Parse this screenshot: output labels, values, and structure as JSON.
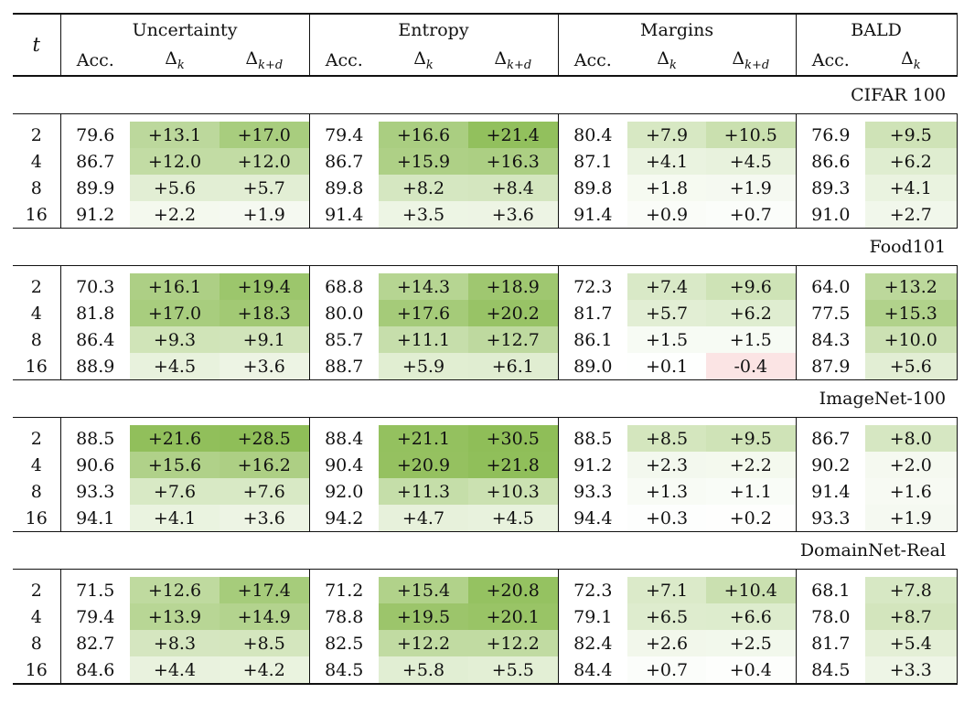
{
  "columns": {
    "t": "t",
    "groups": [
      "Uncertainty",
      "Entropy",
      "Margins",
      "BALD"
    ],
    "acc": "Acc.",
    "delta_k": "Δk",
    "delta_kd": "Δk+d"
  },
  "colors": {
    "pos_max": "#8fbe58",
    "neg": "#fbe4e4"
  },
  "sections": [
    {
      "name": "CIFAR 100",
      "rows": [
        {
          "t": "2",
          "u": [
            "79.6",
            "+13.1",
            "+17.0"
          ],
          "e": [
            "79.4",
            "+16.6",
            "+21.4"
          ],
          "m": [
            "80.4",
            "+7.9",
            "+10.5"
          ],
          "b": [
            "76.9",
            "+9.5"
          ]
        },
        {
          "t": "4",
          "u": [
            "86.7",
            "+12.0",
            "+12.0"
          ],
          "e": [
            "86.7",
            "+15.9",
            "+16.3"
          ],
          "m": [
            "87.1",
            "+4.1",
            "+4.5"
          ],
          "b": [
            "86.6",
            "+6.2"
          ]
        },
        {
          "t": "8",
          "u": [
            "89.9",
            "+5.6",
            "+5.7"
          ],
          "e": [
            "89.8",
            "+8.2",
            "+8.4"
          ],
          "m": [
            "89.8",
            "+1.8",
            "+1.9"
          ],
          "b": [
            "89.3",
            "+4.1"
          ]
        },
        {
          "t": "16",
          "u": [
            "91.2",
            "+2.2",
            "+1.9"
          ],
          "e": [
            "91.4",
            "+3.5",
            "+3.6"
          ],
          "m": [
            "91.4",
            "+0.9",
            "+0.7"
          ],
          "b": [
            "91.0",
            "+2.7"
          ]
        }
      ]
    },
    {
      "name": "Food101",
      "rows": [
        {
          "t": "2",
          "u": [
            "70.3",
            "+16.1",
            "+19.4"
          ],
          "e": [
            "68.8",
            "+14.3",
            "+18.9"
          ],
          "m": [
            "72.3",
            "+7.4",
            "+9.6"
          ],
          "b": [
            "64.0",
            "+13.2"
          ]
        },
        {
          "t": "4",
          "u": [
            "81.8",
            "+17.0",
            "+18.3"
          ],
          "e": [
            "80.0",
            "+17.6",
            "+20.2"
          ],
          "m": [
            "81.7",
            "+5.7",
            "+6.2"
          ],
          "b": [
            "77.5",
            "+15.3"
          ]
        },
        {
          "t": "8",
          "u": [
            "86.4",
            "+9.3",
            "+9.1"
          ],
          "e": [
            "85.7",
            "+11.1",
            "+12.7"
          ],
          "m": [
            "86.1",
            "+1.5",
            "+1.5"
          ],
          "b": [
            "84.3",
            "+10.0"
          ]
        },
        {
          "t": "16",
          "u": [
            "88.9",
            "+4.5",
            "+3.6"
          ],
          "e": [
            "88.7",
            "+5.9",
            "+6.1"
          ],
          "m": [
            "89.0",
            "+0.1",
            "-0.4"
          ],
          "b": [
            "87.9",
            "+5.6"
          ]
        }
      ]
    },
    {
      "name": "ImageNet-100",
      "rows": [
        {
          "t": "2",
          "u": [
            "88.5",
            "+21.6",
            "+28.5"
          ],
          "e": [
            "88.4",
            "+21.1",
            "+30.5"
          ],
          "m": [
            "88.5",
            "+8.5",
            "+9.5"
          ],
          "b": [
            "86.7",
            "+8.0"
          ]
        },
        {
          "t": "4",
          "u": [
            "90.6",
            "+15.6",
            "+16.2"
          ],
          "e": [
            "90.4",
            "+20.9",
            "+21.8"
          ],
          "m": [
            "91.2",
            "+2.3",
            "+2.2"
          ],
          "b": [
            "90.2",
            "+2.0"
          ]
        },
        {
          "t": "8",
          "u": [
            "93.3",
            "+7.6",
            "+7.6"
          ],
          "e": [
            "92.0",
            "+11.3",
            "+10.3"
          ],
          "m": [
            "93.3",
            "+1.3",
            "+1.1"
          ],
          "b": [
            "91.4",
            "+1.6"
          ]
        },
        {
          "t": "16",
          "u": [
            "94.1",
            "+4.1",
            "+3.6"
          ],
          "e": [
            "94.2",
            "+4.7",
            "+4.5"
          ],
          "m": [
            "94.4",
            "+0.3",
            "+0.2"
          ],
          "b": [
            "93.3",
            "+1.9"
          ]
        }
      ]
    },
    {
      "name": "DomainNet-Real",
      "rows": [
        {
          "t": "2",
          "u": [
            "71.5",
            "+12.6",
            "+17.4"
          ],
          "e": [
            "71.2",
            "+15.4",
            "+20.8"
          ],
          "m": [
            "72.3",
            "+7.1",
            "+10.4"
          ],
          "b": [
            "68.1",
            "+7.8"
          ]
        },
        {
          "t": "4",
          "u": [
            "79.4",
            "+13.9",
            "+14.9"
          ],
          "e": [
            "78.8",
            "+19.5",
            "+20.1"
          ],
          "m": [
            "79.1",
            "+6.5",
            "+6.6"
          ],
          "b": [
            "78.0",
            "+8.7"
          ]
        },
        {
          "t": "8",
          "u": [
            "82.7",
            "+8.3",
            "+8.5"
          ],
          "e": [
            "82.5",
            "+12.2",
            "+12.2"
          ],
          "m": [
            "82.4",
            "+2.6",
            "+2.5"
          ],
          "b": [
            "81.7",
            "+5.4"
          ]
        },
        {
          "t": "16",
          "u": [
            "84.6",
            "+4.4",
            "+4.2"
          ],
          "e": [
            "84.5",
            "+5.8",
            "+5.5"
          ],
          "m": [
            "84.4",
            "+0.7",
            "+0.4"
          ],
          "b": [
            "84.5",
            "+3.3"
          ]
        }
      ]
    }
  ]
}
